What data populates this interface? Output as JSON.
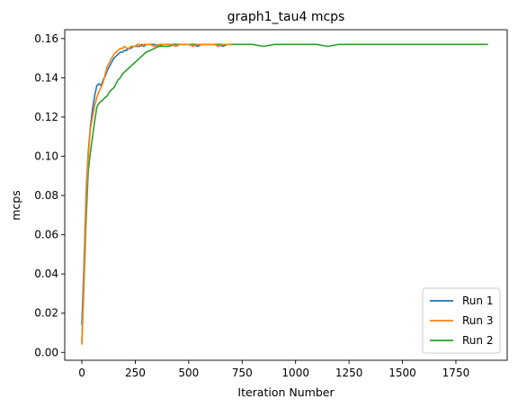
{
  "chart_data": {
    "type": "line",
    "title": "graph1_tau4 mcps",
    "xlabel": "Iteration Number",
    "ylabel": "mcps",
    "xlim": [
      -80,
      1990
    ],
    "ylim": [
      -0.004,
      0.1645
    ],
    "xticks": [
      0,
      250,
      500,
      750,
      1000,
      1250,
      1500,
      1750
    ],
    "xtick_labels": [
      "0",
      "250",
      "500",
      "750",
      "1000",
      "1250",
      "1500",
      "1750"
    ],
    "yticks": [
      0.0,
      0.02,
      0.04,
      0.06,
      0.08,
      0.1,
      0.12,
      0.14,
      0.16
    ],
    "ytick_labels": [
      "0.00",
      "0.02",
      "0.04",
      "0.06",
      "0.08",
      "0.10",
      "0.12",
      "0.14",
      "0.16"
    ],
    "grid": false,
    "legend_position": "lower-right",
    "legend_order": [
      0,
      2,
      1
    ],
    "series": [
      {
        "name": "Run 1",
        "color": "#1f77b4",
        "x": [
          0,
          10,
          20,
          30,
          40,
          50,
          60,
          70,
          80,
          90,
          100,
          110,
          120,
          130,
          140,
          150,
          160,
          170,
          180,
          190,
          200,
          210,
          220,
          230,
          240,
          250,
          260,
          270,
          280,
          290,
          300,
          320,
          340,
          360,
          380,
          400,
          420,
          440,
          460,
          480,
          500,
          520,
          540,
          560,
          580,
          600,
          620,
          640,
          660,
          680,
          700
        ],
        "y": [
          0.014,
          0.045,
          0.082,
          0.102,
          0.115,
          0.124,
          0.131,
          0.136,
          0.137,
          0.136,
          0.139,
          0.141,
          0.144,
          0.146,
          0.148,
          0.15,
          0.151,
          0.152,
          0.153,
          0.153,
          0.154,
          0.154,
          0.155,
          0.155,
          0.156,
          0.156,
          0.156,
          0.156,
          0.157,
          0.156,
          0.157,
          0.157,
          0.157,
          0.156,
          0.157,
          0.157,
          0.157,
          0.157,
          0.157,
          0.157,
          0.157,
          0.157,
          0.156,
          0.157,
          0.157,
          0.157,
          0.157,
          0.157,
          0.156,
          0.157,
          0.157
        ]
      },
      {
        "name": "Run 2",
        "color": "#2ca02c",
        "x": [
          0,
          10,
          20,
          30,
          40,
          50,
          60,
          70,
          80,
          90,
          100,
          110,
          120,
          130,
          140,
          150,
          160,
          170,
          180,
          190,
          200,
          220,
          240,
          260,
          280,
          300,
          320,
          340,
          360,
          380,
          400,
          450,
          500,
          550,
          600,
          650,
          700,
          750,
          800,
          850,
          900,
          950,
          1000,
          1050,
          1100,
          1150,
          1200,
          1250,
          1300,
          1350,
          1400,
          1450,
          1500,
          1550,
          1600,
          1650,
          1700,
          1750,
          1800,
          1850,
          1900
        ],
        "y": [
          0.005,
          0.035,
          0.068,
          0.092,
          0.102,
          0.11,
          0.118,
          0.125,
          0.127,
          0.128,
          0.129,
          0.13,
          0.131,
          0.133,
          0.134,
          0.135,
          0.137,
          0.139,
          0.14,
          0.142,
          0.143,
          0.145,
          0.147,
          0.149,
          0.151,
          0.153,
          0.154,
          0.155,
          0.156,
          0.156,
          0.156,
          0.157,
          0.157,
          0.157,
          0.157,
          0.157,
          0.157,
          0.157,
          0.157,
          0.156,
          0.157,
          0.157,
          0.157,
          0.157,
          0.157,
          0.156,
          0.157,
          0.157,
          0.157,
          0.157,
          0.157,
          0.157,
          0.157,
          0.157,
          0.157,
          0.157,
          0.157,
          0.157,
          0.157,
          0.157,
          0.157
        ]
      },
      {
        "name": "Run 3",
        "color": "#ff7f0e",
        "x": [
          0,
          10,
          20,
          30,
          40,
          50,
          60,
          70,
          80,
          90,
          100,
          110,
          120,
          130,
          140,
          150,
          160,
          170,
          180,
          190,
          200,
          210,
          220,
          230,
          240,
          250,
          260,
          270,
          280,
          290,
          300,
          320,
          340,
          360,
          380,
          400,
          420,
          440,
          460,
          480,
          500,
          520,
          540,
          560,
          580,
          600,
          620,
          640,
          660,
          680,
          700
        ],
        "y": [
          0.004,
          0.04,
          0.078,
          0.1,
          0.114,
          0.12,
          0.126,
          0.13,
          0.133,
          0.135,
          0.138,
          0.142,
          0.146,
          0.148,
          0.15,
          0.152,
          0.153,
          0.154,
          0.155,
          0.155,
          0.156,
          0.155,
          0.155,
          0.156,
          0.156,
          0.156,
          0.157,
          0.157,
          0.156,
          0.157,
          0.157,
          0.157,
          0.156,
          0.157,
          0.157,
          0.157,
          0.157,
          0.156,
          0.157,
          0.157,
          0.157,
          0.156,
          0.157,
          0.157,
          0.157,
          0.157,
          0.157,
          0.156,
          0.157,
          0.157,
          0.157
        ]
      }
    ]
  }
}
